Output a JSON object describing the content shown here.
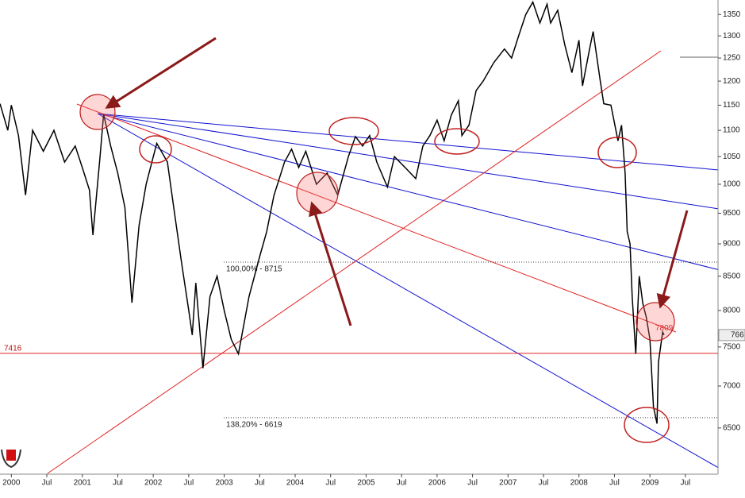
{
  "chart_data": {
    "type": "line",
    "log_scale": true,
    "color": "#000000",
    "xlim": [
      1999.84,
      2009.96
    ],
    "ylim": [
      5990,
      13850
    ],
    "xticks": [
      2000,
      {
        "value": 2000.5,
        "label": "Jul"
      },
      2001,
      {
        "value": 2001.5,
        "label": "Jul"
      },
      2002,
      {
        "value": 2002.5,
        "label": "Jul"
      },
      2003,
      {
        "value": 2003.5,
        "label": "Jul"
      },
      2004,
      {
        "value": 2004.5,
        "label": "Jul"
      },
      2005,
      {
        "value": 2005.5,
        "label": "Jul"
      },
      2006,
      {
        "value": 2006.5,
        "label": "Jul"
      },
      2007,
      {
        "value": 2007.5,
        "label": "Jul"
      },
      2008,
      {
        "value": 2008.5,
        "label": "Jul"
      },
      2009,
      {
        "value": 2009.5,
        "label": "Jul"
      }
    ],
    "yticks": [
      {
        "value": 13500,
        "label": "1350"
      },
      {
        "value": 13000,
        "label": "1300"
      },
      {
        "value": 12500,
        "label": "1250"
      },
      {
        "value": 12000,
        "label": "1200"
      },
      {
        "value": 11500,
        "label": "1150"
      },
      {
        "value": 11000,
        "label": "1100"
      },
      {
        "value": 10500,
        "label": "1050"
      },
      {
        "value": 10000,
        "label": "1000"
      },
      9500,
      9000,
      8500,
      8000,
      7500,
      7000,
      6500
    ],
    "x": [
      1999.84,
      1999.95,
      2000.0,
      2000.1,
      2000.2,
      2000.3,
      2000.45,
      2000.6,
      2000.75,
      2000.9,
      2001.0,
      2001.1,
      2001.15,
      2001.25,
      2001.3,
      2001.4,
      2001.5,
      2001.6,
      2001.7,
      2001.8,
      2001.9,
      2002.0,
      2002.05,
      2002.2,
      2002.3,
      2002.4,
      2002.5,
      2002.55,
      2002.6,
      2002.7,
      2002.8,
      2002.9,
      2003.0,
      2003.1,
      2003.2,
      2003.35,
      2003.5,
      2003.6,
      2003.7,
      2003.85,
      2003.95,
      2004.05,
      2004.15,
      2004.3,
      2004.45,
      2004.6,
      2004.75,
      2004.85,
      2004.95,
      2005.05,
      2005.15,
      2005.3,
      2005.4,
      2005.55,
      2005.7,
      2005.8,
      2005.9,
      2006.0,
      2006.1,
      2006.2,
      2006.3,
      2006.35,
      2006.45,
      2006.55,
      2006.65,
      2006.8,
      2006.95,
      2007.05,
      2007.15,
      2007.25,
      2007.35,
      2007.45,
      2007.55,
      2007.6,
      2007.7,
      2007.8,
      2007.9,
      2008.0,
      2008.05,
      2008.15,
      2008.2,
      2008.3,
      2008.35,
      2008.45,
      2008.55,
      2008.6,
      2008.65,
      2008.68,
      2008.72,
      2008.75,
      2008.8,
      2008.85,
      2008.9,
      2008.95,
      2009.0,
      2009.05,
      2009.1,
      2009.12,
      2009.18,
      2009.2
    ],
    "values": [
      11530,
      11000,
      11500,
      10900,
      9810,
      11000,
      10600,
      11000,
      10400,
      10700,
      10300,
      9900,
      9140,
      10500,
      11320,
      10700,
      10200,
      9600,
      8110,
      9300,
      10000,
      10500,
      10750,
      10400,
      9500,
      8700,
      8000,
      7660,
      8400,
      7225,
      8200,
      8500,
      8000,
      7600,
      7410,
      8200,
      8800,
      9200,
      9800,
      10400,
      10640,
      10300,
      10600,
      10000,
      10200,
      9810,
      10500,
      10880,
      10700,
      10900,
      10400,
      9950,
      10500,
      10300,
      10100,
      10700,
      10900,
      11200,
      10800,
      11300,
      11590,
      10900,
      11100,
      11800,
      12000,
      12400,
      12700,
      12500,
      13000,
      13500,
      13800,
      13300,
      13750,
      13300,
      13600,
      12800,
      12180,
      12900,
      11900,
      12700,
      13100,
      12000,
      11530,
      11500,
      10800,
      11100,
      10200,
      9200,
      9000,
      8200,
      7410,
      8500,
      8100,
      7900,
      7600,
      6750,
      6550,
      7300,
      7700,
      7660
    ],
    "support": 7416,
    "levels": [
      {
        "value": 8715,
        "label": "100,00% - 8715"
      },
      {
        "value": 6619,
        "label": "138,20% - 6619"
      }
    ],
    "annotation": 7809,
    "last_label": "766"
  }
}
